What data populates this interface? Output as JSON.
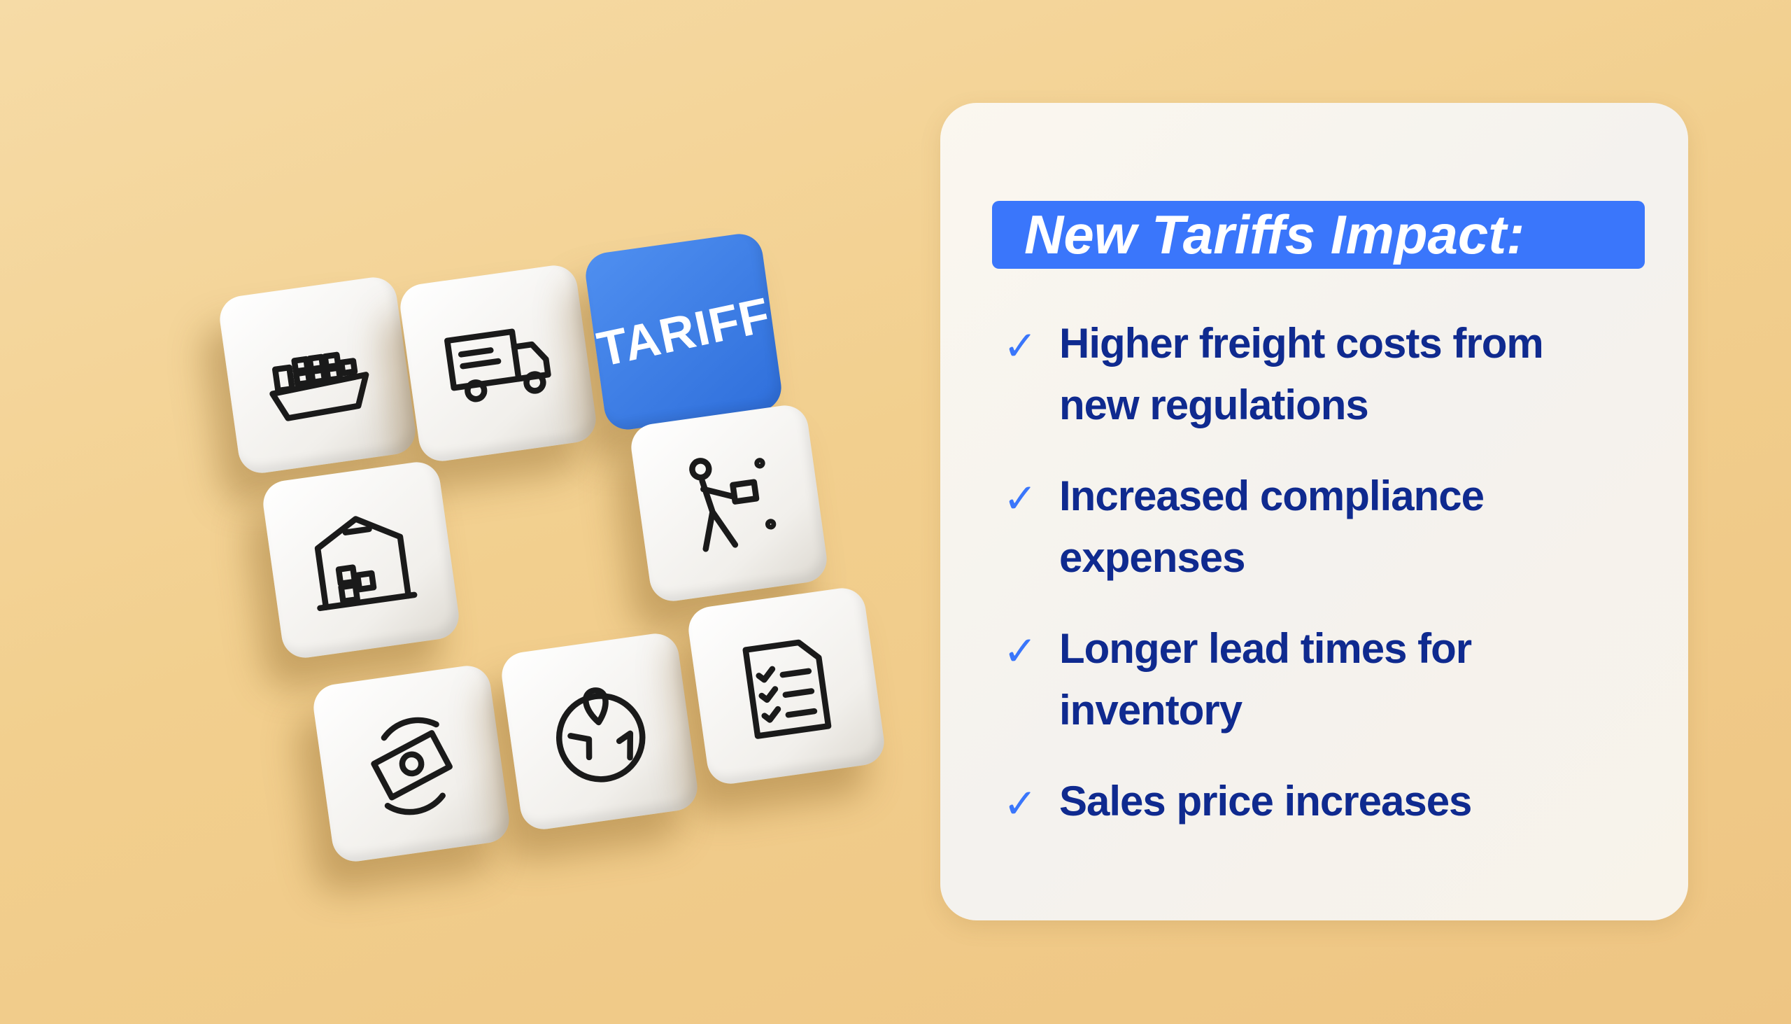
{
  "tiles": [
    {
      "icon": "cargo-ship-icon"
    },
    {
      "icon": "delivery-truck-icon"
    },
    {
      "label": "TARIFF",
      "color": "#3a76fb"
    },
    {
      "icon": "warehouse-icon"
    },
    {
      "icon": "delivery-person-icon"
    },
    {
      "icon": "money-exchange-icon"
    },
    {
      "icon": "globe-location-icon"
    },
    {
      "icon": "checklist-document-icon"
    }
  ],
  "card": {
    "heading": "New Tariffs Impact:",
    "heading_color": "#3a76fb",
    "text_color": "#0f2a8f",
    "items": [
      {
        "text": "Higher freight costs from new regulations"
      },
      {
        "text": "Increased compliance expenses"
      },
      {
        "text": "Longer lead times for inventory"
      },
      {
        "text": "Sales price increases"
      }
    ]
  }
}
